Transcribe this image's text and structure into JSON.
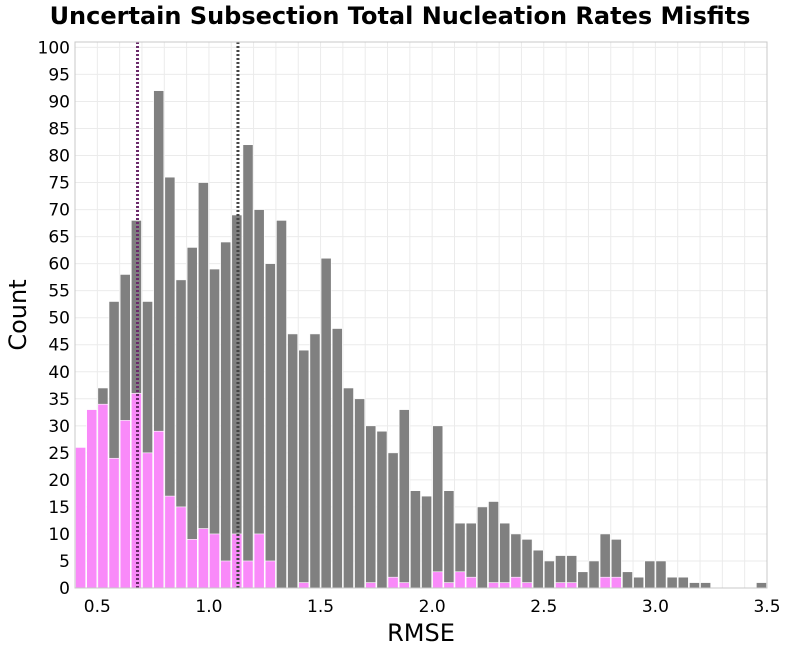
{
  "chart_data": {
    "type": "bar",
    "title": "Uncertain Subsection Total Nucleation Rates Misfits",
    "xlabel": "RMSE",
    "ylabel": "Count",
    "xlim": [
      0.4,
      3.5
    ],
    "ylim": [
      0,
      101
    ],
    "bin_width": 0.05,
    "grid": true,
    "x_ticks": [
      "0.5",
      "1.0",
      "1.5",
      "2.0",
      "2.5",
      "3.0",
      "3.5"
    ],
    "y_ticks": [
      "0",
      "5",
      "10",
      "15",
      "20",
      "25",
      "30",
      "35",
      "40",
      "45",
      "50",
      "55",
      "60",
      "65",
      "70",
      "75",
      "80",
      "85",
      "90",
      "95",
      "100"
    ],
    "x": [
      0.425,
      0.475,
      0.525,
      0.575,
      0.625,
      0.675,
      0.725,
      0.775,
      0.825,
      0.875,
      0.925,
      0.975,
      1.025,
      1.075,
      1.125,
      1.175,
      1.225,
      1.275,
      1.325,
      1.375,
      1.425,
      1.475,
      1.525,
      1.575,
      1.625,
      1.675,
      1.725,
      1.775,
      1.825,
      1.875,
      1.925,
      1.975,
      2.025,
      2.075,
      2.125,
      2.175,
      2.225,
      2.275,
      2.325,
      2.375,
      2.425,
      2.475,
      2.525,
      2.575,
      2.625,
      2.675,
      2.725,
      2.775,
      2.825,
      2.875,
      2.925,
      2.975,
      3.025,
      3.075,
      3.125,
      3.175,
      3.225,
      3.275,
      3.325,
      3.375,
      3.425,
      3.475
    ],
    "series": [
      {
        "values": [
          26,
          33,
          37,
          53,
          58,
          68,
          53,
          92,
          76,
          57,
          63,
          75,
          59,
          64,
          69,
          82,
          70,
          60,
          68,
          47,
          44,
          47,
          61,
          48,
          37,
          35,
          30,
          29,
          25,
          33,
          18,
          17,
          30,
          18,
          12,
          12,
          15,
          16,
          12,
          10,
          9,
          7,
          5,
          6,
          6,
          3,
          5,
          10,
          9,
          3,
          2,
          5,
          5,
          2,
          2,
          1,
          1,
          0,
          0,
          0,
          0,
          1
        ],
        "color": "#808080"
      },
      {
        "values": [
          26,
          33,
          34,
          24,
          31,
          36,
          25,
          29,
          17,
          15,
          9,
          11,
          10,
          5,
          10,
          5,
          10,
          5,
          0,
          0,
          1,
          0,
          0,
          0,
          0,
          0,
          1,
          0,
          2,
          1,
          0,
          0,
          3,
          1,
          3,
          2,
          0,
          1,
          1,
          2,
          1,
          0,
          0,
          1,
          1,
          0,
          0,
          2,
          2,
          0,
          0,
          0,
          0,
          0,
          0,
          0,
          0,
          0,
          0,
          0,
          0,
          0
        ],
        "color": "#f98af9"
      }
    ],
    "vlines": [
      {
        "x": 0.68,
        "color": "#6a2a6a",
        "style": "dotted"
      },
      {
        "x": 1.13,
        "color": "#444444",
        "style": "dotted"
      }
    ]
  }
}
